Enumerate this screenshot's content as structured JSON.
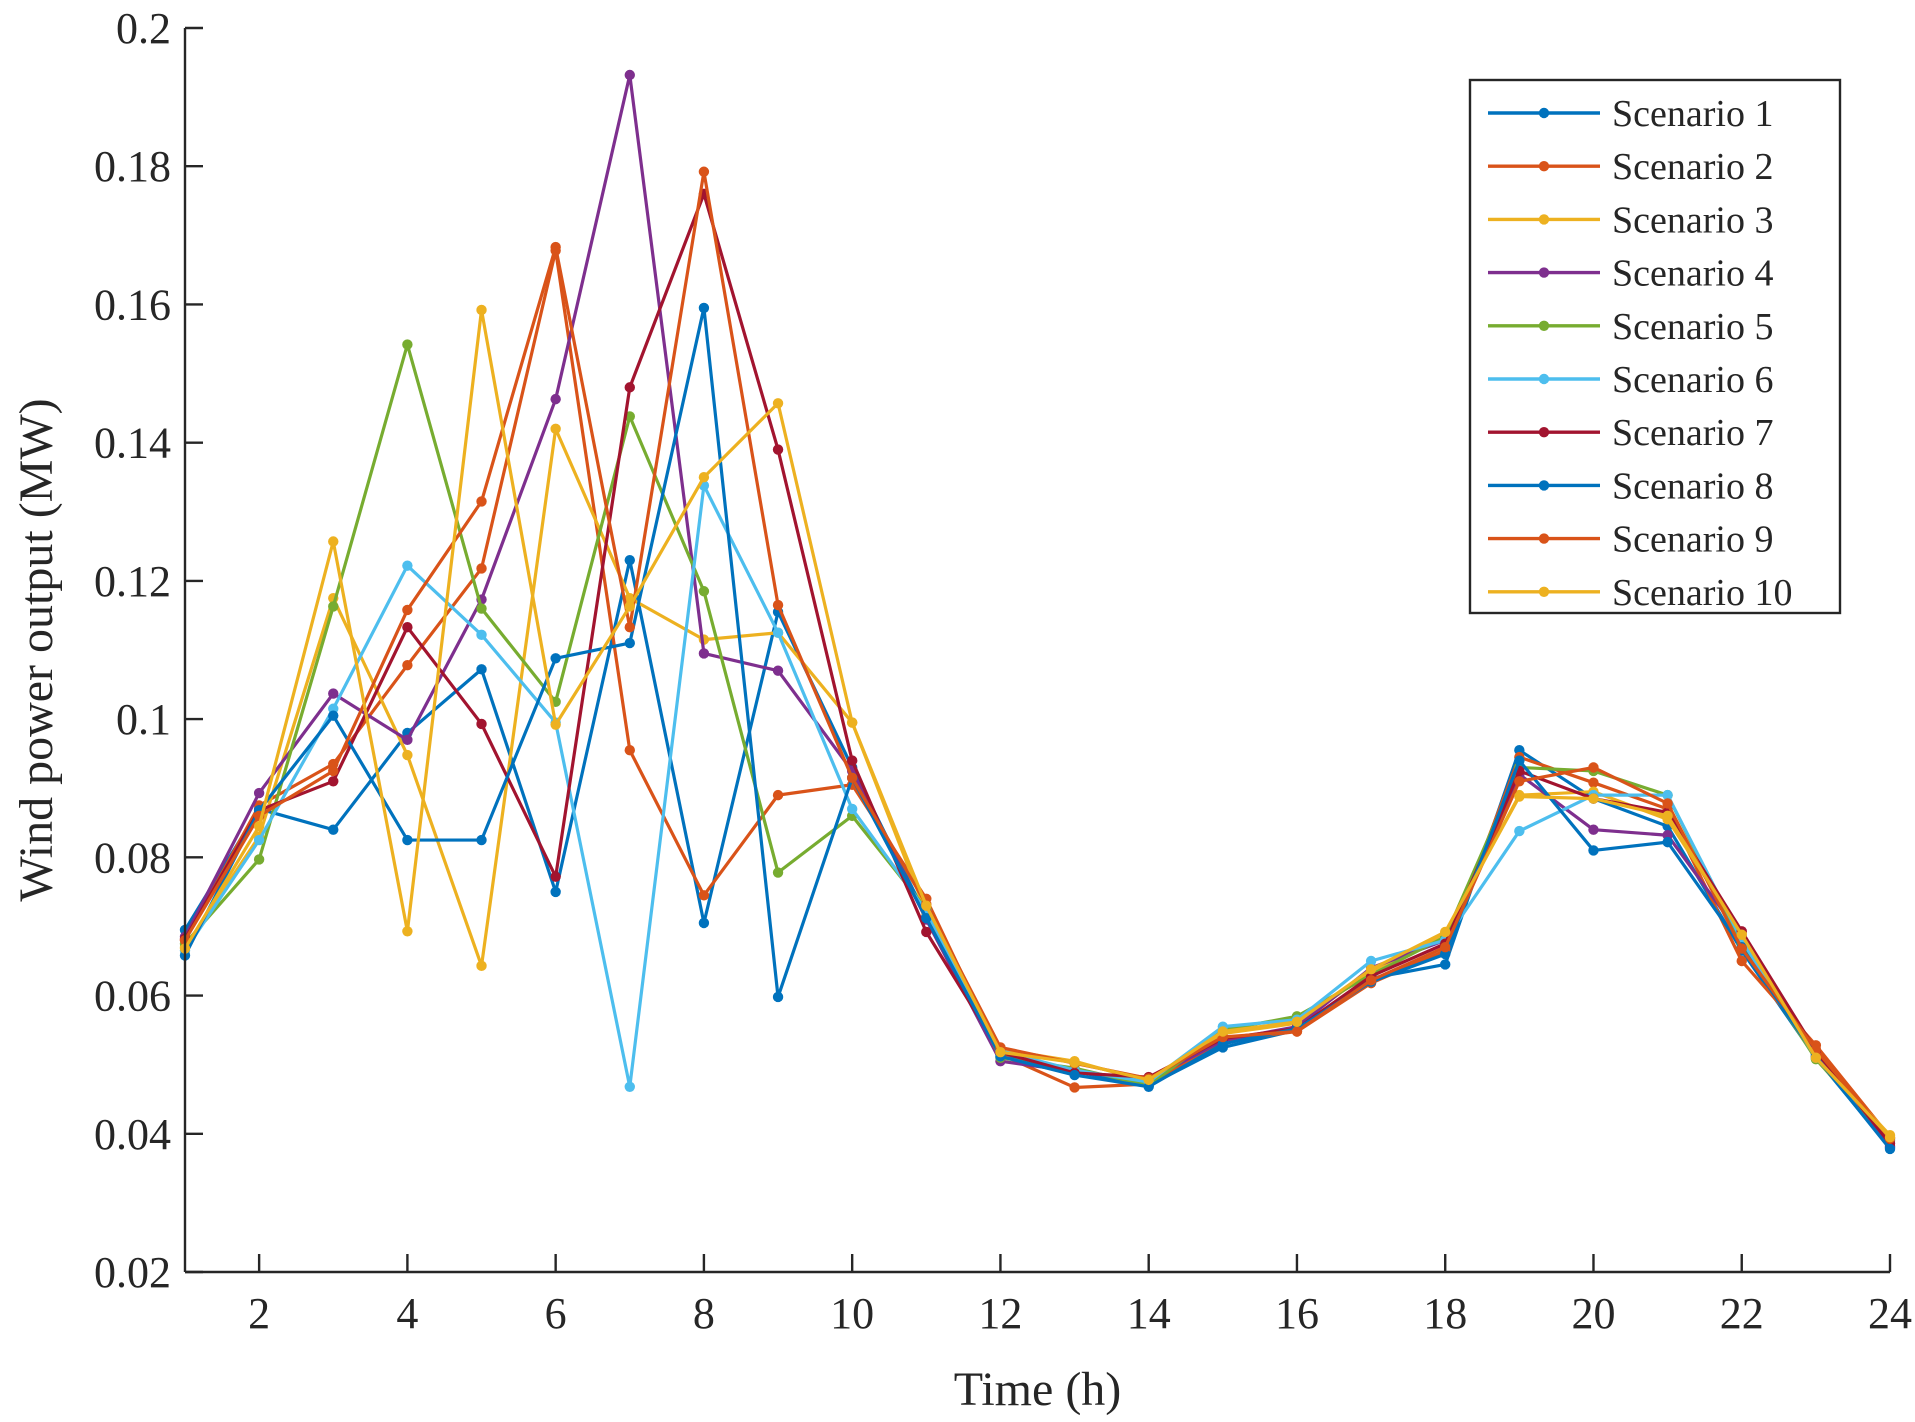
{
  "chart_data": {
    "type": "line",
    "title": "",
    "xlabel": "Time (h)",
    "ylabel": "Wind power output (MW)",
    "xlim": [
      1,
      24
    ],
    "ylim": [
      0.02,
      0.2
    ],
    "xticks": [
      2,
      4,
      6,
      8,
      10,
      12,
      14,
      16,
      18,
      20,
      22,
      24
    ],
    "xtick_labels": [
      "2",
      "4",
      "6",
      "8",
      "10",
      "12",
      "14",
      "16",
      "18",
      "20",
      "22",
      "24"
    ],
    "yticks": [
      0.02,
      0.04,
      0.06,
      0.08,
      0.1,
      0.12,
      0.14,
      0.16,
      0.18,
      0.2
    ],
    "ytick_labels": [
      "0.02",
      "0.04",
      "0.06",
      "0.08",
      "0.1",
      "0.12",
      "0.14",
      "0.16",
      "0.18",
      "0.2"
    ],
    "grid": false,
    "legend_position": "top-right",
    "x": [
      1,
      2,
      3,
      4,
      5,
      6,
      7,
      8,
      9,
      10,
      11,
      12,
      13,
      14,
      15,
      16,
      17,
      18,
      19,
      20,
      21,
      22,
      23,
      24
    ],
    "series": [
      {
        "name": "Scenario 1",
        "color": "#0072BD",
        "values": [
          0.0695,
          0.087,
          0.084,
          0.098,
          0.1072,
          0.075,
          0.123,
          0.0705,
          0.1155,
          0.093,
          0.0715,
          0.0515,
          0.049,
          0.047,
          0.0525,
          0.055,
          0.0625,
          0.0645,
          0.0955,
          0.0885,
          0.0845,
          0.0665,
          0.051,
          0.038
        ]
      },
      {
        "name": "Scenario 2",
        "color": "#D95319",
        "values": [
          0.068,
          0.0875,
          0.0935,
          0.1078,
          0.1218,
          0.1678,
          0.0955,
          0.0745,
          0.089,
          0.0905,
          0.074,
          0.0515,
          0.0467,
          0.0472,
          0.0535,
          0.0548,
          0.0618,
          0.0665,
          0.0945,
          0.0908,
          0.087,
          0.065,
          0.0528,
          0.0395
        ]
      },
      {
        "name": "Scenario 3",
        "color": "#EDB120",
        "values": [
          0.067,
          0.083,
          0.1175,
          0.0948,
          0.0643,
          0.142,
          0.1175,
          0.1115,
          0.1125,
          0.0995,
          0.072,
          0.0522,
          0.0505,
          0.0475,
          0.0545,
          0.056,
          0.0635,
          0.069,
          0.089,
          0.0895,
          0.0855,
          0.069,
          0.0512,
          0.0398
        ]
      },
      {
        "name": "Scenario 4",
        "color": "#7E2F8E",
        "values": [
          0.0685,
          0.0893,
          0.1037,
          0.097,
          0.1173,
          0.1463,
          0.1932,
          0.1095,
          0.107,
          0.0925,
          0.071,
          0.0505,
          0.049,
          0.0478,
          0.0535,
          0.0555,
          0.064,
          0.068,
          0.092,
          0.084,
          0.0832,
          0.0685,
          0.0515,
          0.0382
        ]
      },
      {
        "name": "Scenario 5",
        "color": "#77AC30",
        "values": [
          0.0675,
          0.0797,
          0.1163,
          0.1542,
          0.116,
          0.1025,
          0.1438,
          0.1185,
          0.0778,
          0.086,
          0.0725,
          0.051,
          0.0495,
          0.047,
          0.055,
          0.057,
          0.063,
          0.0685,
          0.093,
          0.0925,
          0.089,
          0.0675,
          0.0508,
          0.039
        ]
      },
      {
        "name": "Scenario 6",
        "color": "#4DBEEE",
        "values": [
          0.0665,
          0.0825,
          0.1015,
          0.1222,
          0.1122,
          0.0995,
          0.0468,
          0.1338,
          0.1125,
          0.087,
          0.0722,
          0.052,
          0.0492,
          0.0475,
          0.0555,
          0.0565,
          0.065,
          0.068,
          0.0838,
          0.089,
          0.089,
          0.068,
          0.051,
          0.0392
        ]
      },
      {
        "name": "Scenario 7",
        "color": "#A2142F",
        "values": [
          0.0682,
          0.0868,
          0.091,
          0.1133,
          0.0993,
          0.0772,
          0.148,
          0.176,
          0.139,
          0.094,
          0.0692,
          0.0518,
          0.0488,
          0.0482,
          0.0538,
          0.0552,
          0.0628,
          0.0675,
          0.0925,
          0.0885,
          0.0865,
          0.0693,
          0.052,
          0.0386
        ]
      },
      {
        "name": "Scenario 8",
        "color": "#0072BD",
        "values": [
          0.0658,
          0.0868,
          0.1005,
          0.0825,
          0.0825,
          0.1088,
          0.111,
          0.1595,
          0.0598,
          0.0915,
          0.0712,
          0.0512,
          0.0485,
          0.0468,
          0.053,
          0.0552,
          0.062,
          0.066,
          0.094,
          0.081,
          0.0822,
          0.067,
          0.0512,
          0.0378
        ]
      },
      {
        "name": "Scenario 9",
        "color": "#D95319",
        "values": [
          0.068,
          0.086,
          0.0925,
          0.1158,
          0.1315,
          0.1683,
          0.1133,
          0.1792,
          0.1165,
          0.0915,
          0.0732,
          0.0525,
          0.0502,
          0.048,
          0.054,
          0.0548,
          0.0622,
          0.067,
          0.091,
          0.093,
          0.0878,
          0.0668,
          0.0522,
          0.0393
        ]
      },
      {
        "name": "Scenario 10",
        "color": "#EDB120",
        "values": [
          0.0668,
          0.0845,
          0.1257,
          0.0693,
          0.1592,
          0.0992,
          0.1163,
          0.135,
          0.1457,
          0.0995,
          0.073,
          0.0518,
          0.0503,
          0.0478,
          0.0548,
          0.0562,
          0.0638,
          0.0692,
          0.0888,
          0.0885,
          0.086,
          0.0688,
          0.051,
          0.0395
        ]
      }
    ]
  }
}
